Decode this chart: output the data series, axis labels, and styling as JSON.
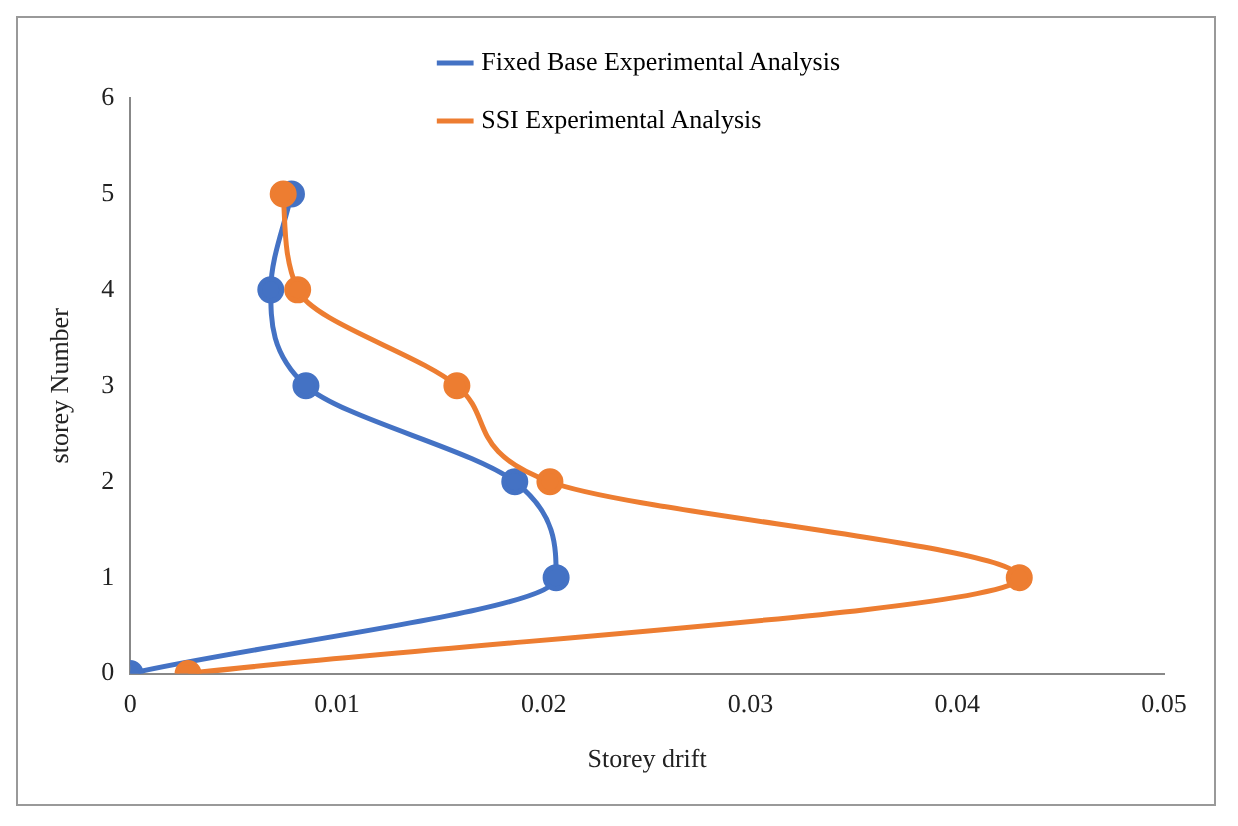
{
  "chart_data": {
    "type": "line",
    "xlabel": "Storey drift",
    "ylabel": "storey Number",
    "xlim": [
      0,
      0.05
    ],
    "xticks": [
      0,
      0.01,
      0.02,
      0.03,
      0.04,
      0.05
    ],
    "ylim": [
      0,
      6
    ],
    "yticks": [
      0,
      1,
      2,
      3,
      4,
      5,
      6
    ],
    "grid": false,
    "legend": "top right",
    "marker": "circle",
    "line_style": "solid",
    "series": [
      {
        "name": "Fixed Base Experimental Analysis",
        "color": "#4472c4",
        "x": [
          0,
          0.0206,
          0.0186,
          0.0085,
          0.0068,
          0.0078
        ],
        "values": [
          0,
          1,
          2,
          3,
          4,
          5
        ]
      },
      {
        "name": "SSI Experimental Analysis",
        "color": "#ed7d31",
        "x": [
          0.0028,
          0.043,
          0.0203,
          0.0158,
          0.0081,
          0.0074
        ],
        "values": [
          0,
          1,
          2,
          3,
          4,
          5
        ]
      }
    ]
  }
}
